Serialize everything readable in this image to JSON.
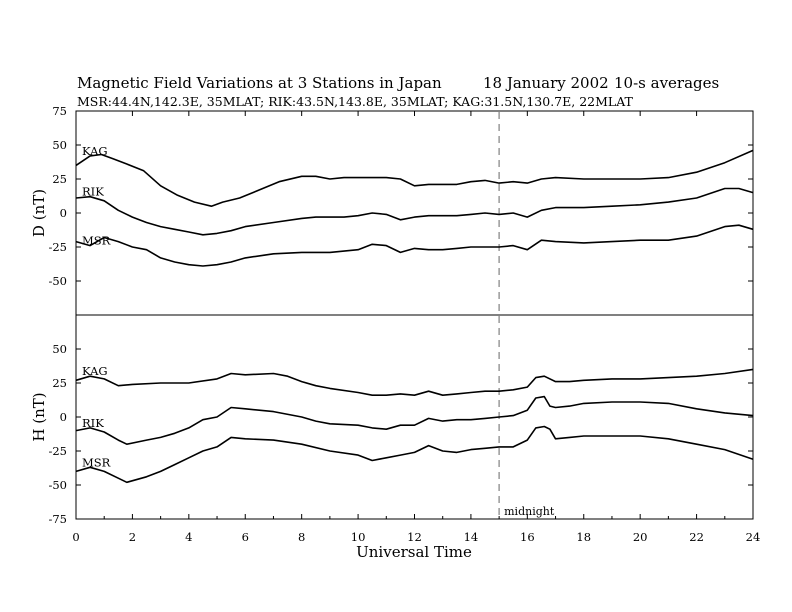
{
  "chart_data": {
    "type": "line",
    "title": "Magnetic Field Variations at 3 Stations in Japan",
    "date": "18 January 2002",
    "averaging": "10-s averages",
    "subtitle": "MSR:44.4N,142.3E, 35MLAT;  RIK:43.5N,143.8E, 35MLAT;  KAG:31.5N,130.7E, 22MLAT",
    "xlabel": "Universal Time",
    "xlim": [
      0,
      24
    ],
    "xticks": [
      "0",
      "2",
      "4",
      "6",
      "8",
      "10",
      "12",
      "14",
      "16",
      "18",
      "20",
      "22",
      "24"
    ],
    "annotation": {
      "text": "midnight",
      "x": 15
    },
    "panels": [
      {
        "ylabel": "D (nT)",
        "ylim": [
          -75,
          75
        ],
        "yticks": [
          "75",
          "50",
          "25",
          "0",
          "-25",
          "-50"
        ],
        "series": [
          {
            "name": "KAG",
            "x": [
              0,
              0.5,
              0.9,
              1.3,
              1.8,
              2.4,
              3,
              3.6,
              4.2,
              4.8,
              5.2,
              5.8,
              6.5,
              7.2,
              8,
              8.5,
              9,
              9.5,
              10,
              10.5,
              11,
              11.5,
              12,
              12.5,
              13,
              13.5,
              14,
              14.5,
              15,
              15.5,
              16,
              16.5,
              17,
              18,
              19,
              20,
              21,
              22,
              23,
              24
            ],
            "y": [
              35,
              42,
              43,
              40,
              36,
              31,
              20,
              13,
              8,
              5,
              8,
              11,
              17,
              23,
              27,
              27,
              25,
              26,
              26,
              26,
              26,
              25,
              20,
              21,
              21,
              21,
              23,
              24,
              22,
              23,
              22,
              25,
              26,
              25,
              25,
              25,
              26,
              30,
              37,
              46
            ]
          },
          {
            "name": "RIK",
            "x": [
              0,
              0.5,
              1,
              1.5,
              2,
              2.5,
              3,
              3.5,
              4,
              4.5,
              5,
              5.5,
              6,
              7,
              8,
              8.5,
              9,
              9.5,
              10,
              10.5,
              11,
              11.5,
              12,
              12.5,
              13,
              13.5,
              14,
              14.5,
              15,
              15.5,
              16,
              16.5,
              17,
              18,
              19,
              20,
              21,
              22,
              23,
              23.5,
              24
            ],
            "y": [
              11,
              12,
              9,
              2,
              -3,
              -7,
              -10,
              -12,
              -14,
              -16,
              -15,
              -13,
              -10,
              -7,
              -4,
              -3,
              -3,
              -3,
              -2,
              0,
              -1,
              -5,
              -3,
              -2,
              -2,
              -2,
              -1,
              0,
              -1,
              0,
              -3,
              2,
              4,
              4,
              5,
              6,
              8,
              11,
              18,
              18,
              15
            ]
          },
          {
            "name": "MSR",
            "x": [
              0,
              0.5,
              1,
              1.5,
              2,
              2.5,
              3,
              3.5,
              4,
              4.5,
              5,
              5.5,
              6,
              7,
              8,
              9,
              10,
              10.5,
              11,
              11.5,
              12,
              12.5,
              13,
              13.5,
              14,
              14.5,
              15,
              15.5,
              16,
              16.5,
              17,
              18,
              19,
              20,
              21,
              22,
              23,
              23.5,
              24
            ],
            "y": [
              -21,
              -24,
              -18,
              -21,
              -25,
              -27,
              -33,
              -36,
              -38,
              -39,
              -38,
              -36,
              -33,
              -30,
              -29,
              -29,
              -27,
              -23,
              -24,
              -29,
              -26,
              -27,
              -27,
              -26,
              -25,
              -25,
              -25,
              -24,
              -27,
              -20,
              -21,
              -22,
              -21,
              -20,
              -20,
              -17,
              -10,
              -9,
              -12
            ]
          }
        ],
        "labels": [
          "KAG",
          "RIK",
          "MSR"
        ]
      },
      {
        "ylabel": "H (nT)",
        "ylim": [
          -75,
          75
        ],
        "yticks": [
          "50",
          "25",
          "0",
          "-25",
          "-50",
          "-75"
        ],
        "series": [
          {
            "name": "KAG",
            "x": [
              0,
              0.5,
              1,
              1.5,
              2,
              3,
              4,
              5,
              5.5,
              6,
              7,
              7.5,
              8,
              8.5,
              9,
              10,
              10.5,
              11,
              11.5,
              12,
              12.5,
              13,
              13.5,
              14,
              14.5,
              15,
              15.5,
              16,
              16.3,
              16.6,
              17,
              17.5,
              18,
              19,
              20,
              21,
              22,
              23,
              24
            ],
            "y": [
              27,
              30,
              28,
              23,
              24,
              25,
              25,
              28,
              32,
              31,
              32,
              30,
              26,
              23,
              21,
              18,
              16,
              16,
              17,
              16,
              19,
              16,
              17,
              18,
              19,
              19,
              20,
              22,
              29,
              30,
              26,
              26,
              27,
              28,
              28,
              29,
              30,
              32,
              35
            ]
          },
          {
            "name": "RIK",
            "x": [
              0,
              0.5,
              1,
              1.5,
              1.8,
              2.5,
              3,
              3.5,
              4,
              4.5,
              5,
              5.5,
              6,
              7,
              8,
              8.5,
              9,
              10,
              10.5,
              11,
              11.5,
              12,
              12.5,
              13,
              13.5,
              14,
              14.5,
              15,
              15.5,
              16,
              16.3,
              16.6,
              16.8,
              17,
              17.5,
              18,
              19,
              20,
              21,
              22,
              23,
              24
            ],
            "y": [
              -10,
              -8,
              -11,
              -17,
              -20,
              -17,
              -15,
              -12,
              -8,
              -2,
              0,
              7,
              6,
              4,
              0,
              -3,
              -5,
              -6,
              -8,
              -9,
              -6,
              -6,
              -1,
              -3,
              -2,
              -2,
              -1,
              0,
              1,
              5,
              14,
              15,
              8,
              7,
              8,
              10,
              11,
              11,
              10,
              6,
              3,
              1
            ]
          },
          {
            "name": "MSR",
            "x": [
              0,
              0.5,
              1,
              1.5,
              1.8,
              2.5,
              3,
              3.5,
              4,
              4.5,
              5,
              5.5,
              6,
              7,
              8,
              9,
              10,
              10.5,
              11,
              11.5,
              12,
              12.5,
              13,
              13.5,
              14,
              14.5,
              15,
              15.5,
              16,
              16.3,
              16.6,
              16.8,
              17,
              17.5,
              18,
              19,
              20,
              21,
              22,
              23,
              24
            ],
            "y": [
              -40,
              -37,
              -40,
              -45,
              -48,
              -44,
              -40,
              -35,
              -30,
              -25,
              -22,
              -15,
              -16,
              -17,
              -20,
              -25,
              -28,
              -32,
              -30,
              -28,
              -26,
              -21,
              -25,
              -26,
              -24,
              -23,
              -22,
              -22,
              -17,
              -8,
              -7,
              -9,
              -16,
              -15,
              -14,
              -14,
              -14,
              -16,
              -20,
              -24,
              -31
            ]
          }
        ],
        "labels": [
          "KAG",
          "RIK",
          "MSR"
        ]
      }
    ]
  }
}
